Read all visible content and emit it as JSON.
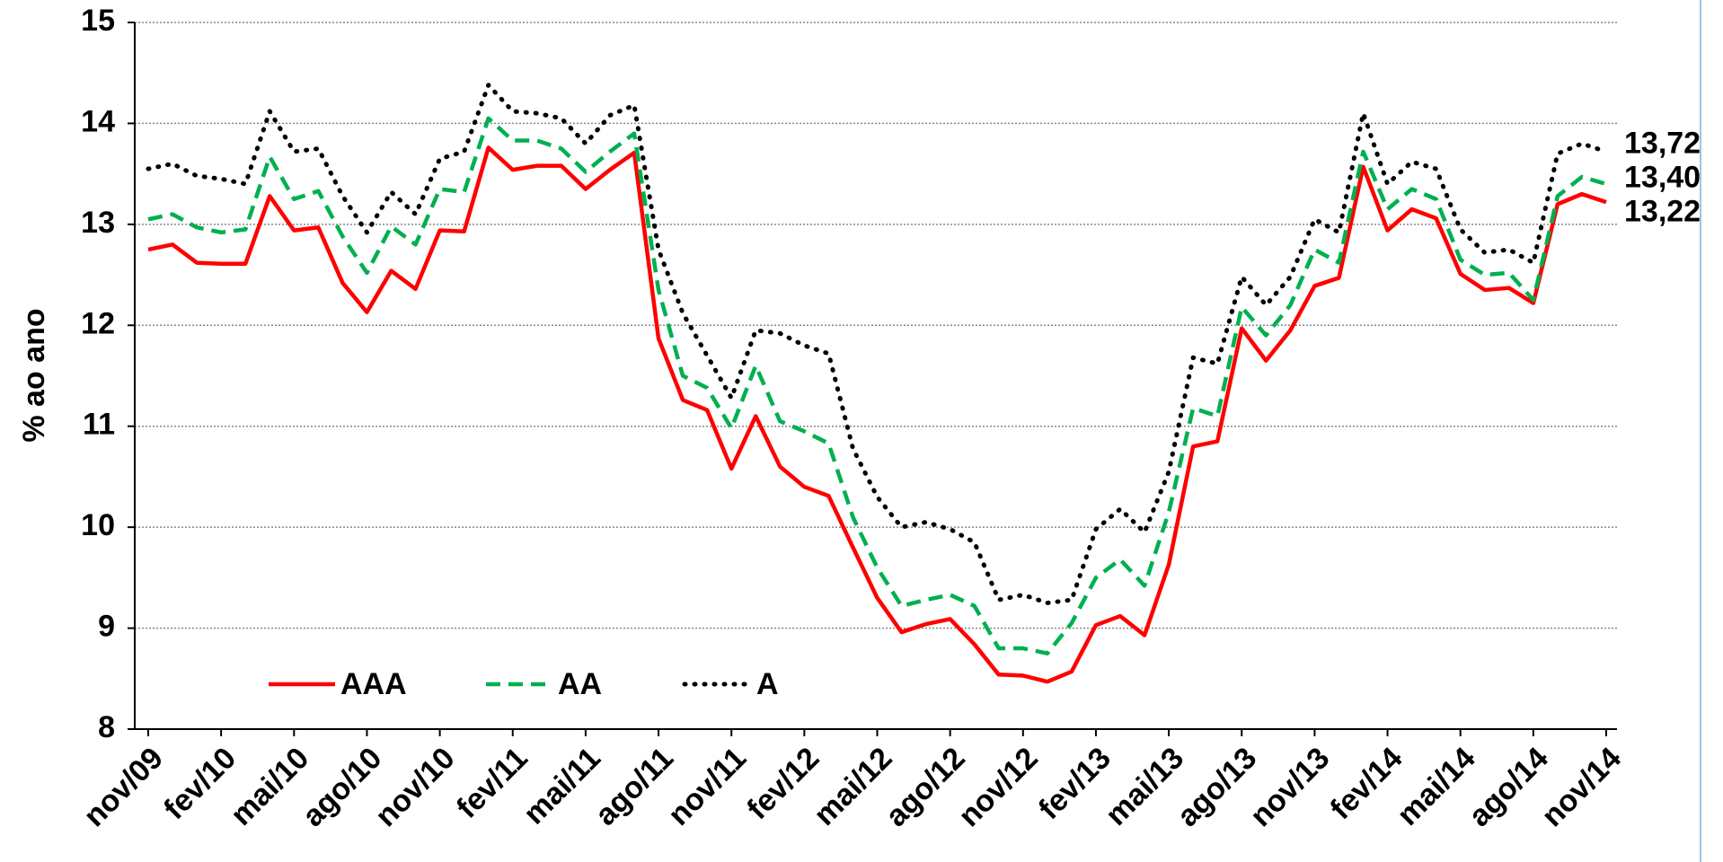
{
  "chart_data": {
    "type": "line",
    "y_label": "% ao ano",
    "categories": [
      "nov/09",
      null,
      null,
      "fev/10",
      null,
      null,
      "mai/10",
      null,
      null,
      "ago/10",
      null,
      null,
      "nov/10",
      null,
      null,
      "fev/11",
      null,
      null,
      "mai/11",
      null,
      null,
      "ago/11",
      null,
      null,
      "nov/11",
      null,
      null,
      "fev/12",
      null,
      null,
      "mai/12",
      null,
      null,
      "ago/12",
      null,
      null,
      "nov/12",
      null,
      null,
      "fev/13",
      null,
      null,
      "mai/13",
      null,
      null,
      "ago/13",
      null,
      null,
      "nov/13",
      null,
      null,
      "fev/14",
      null,
      null,
      "mai/14",
      null,
      null,
      "ago/14",
      null,
      null,
      "nov/14"
    ],
    "series": [
      {
        "name": "AAA",
        "color": "#ff0000",
        "dash": "solid",
        "values": [
          12.75,
          12.8,
          12.62,
          12.61,
          12.61,
          13.28,
          12.94,
          12.97,
          12.42,
          12.13,
          12.54,
          12.36,
          12.94,
          12.93,
          13.76,
          13.54,
          13.58,
          13.58,
          13.35,
          13.54,
          13.71,
          11.87,
          11.26,
          11.16,
          10.58,
          11.1,
          10.6,
          10.4,
          10.31,
          9.8,
          9.3,
          8.96,
          9.04,
          9.09,
          8.84,
          8.54,
          8.53,
          8.47,
          8.57,
          9.03,
          9.12,
          8.93,
          9.63,
          10.8,
          10.85,
          11.97,
          11.65,
          11.95,
          12.39,
          12.47,
          13.57,
          12.94,
          13.15,
          13.06,
          12.51,
          12.35,
          12.37,
          12.22,
          13.2,
          13.3,
          13.22
        ],
        "value_labels": [
          null,
          null,
          null,
          null,
          null,
          null,
          null,
          null,
          null,
          null,
          null,
          null,
          null,
          null,
          null,
          null,
          null,
          null,
          null,
          null,
          null,
          null,
          null,
          null,
          null,
          null,
          null,
          null,
          null,
          null,
          null,
          null,
          null,
          null,
          null,
          null,
          null,
          null,
          null,
          null,
          null,
          null,
          null,
          null,
          null,
          null,
          null,
          null,
          null,
          null,
          null,
          null,
          null,
          null,
          null,
          null,
          null,
          null,
          null,
          null,
          "13,22"
        ]
      },
      {
        "name": "AA",
        "color": "#00b050",
        "dash": "dashed",
        "values": [
          13.05,
          13.1,
          12.97,
          12.92,
          12.95,
          13.67,
          13.25,
          13.33,
          12.88,
          12.52,
          12.98,
          12.8,
          13.35,
          13.32,
          14.05,
          13.83,
          13.83,
          13.75,
          13.52,
          13.72,
          13.9,
          12.35,
          11.5,
          11.38,
          10.98,
          11.6,
          11.05,
          10.95,
          10.83,
          10.1,
          9.6,
          9.22,
          9.28,
          9.33,
          9.22,
          8.8,
          8.8,
          8.75,
          9.05,
          9.5,
          9.68,
          9.42,
          10.15,
          11.18,
          11.1,
          12.18,
          11.9,
          12.2,
          12.75,
          12.62,
          13.72,
          13.15,
          13.35,
          13.25,
          12.65,
          12.5,
          12.52,
          12.25,
          13.28,
          13.47,
          13.4
        ],
        "value_labels": [
          null,
          null,
          null,
          null,
          null,
          null,
          null,
          null,
          null,
          null,
          null,
          null,
          null,
          null,
          null,
          null,
          null,
          null,
          null,
          null,
          null,
          null,
          null,
          null,
          null,
          null,
          null,
          null,
          null,
          null,
          null,
          null,
          null,
          null,
          null,
          null,
          null,
          null,
          null,
          null,
          null,
          null,
          null,
          null,
          null,
          null,
          null,
          null,
          null,
          null,
          null,
          null,
          null,
          null,
          null,
          null,
          null,
          null,
          null,
          null,
          "13,40"
        ]
      },
      {
        "name": "A",
        "color": "#000000",
        "dash": "dotted",
        "values": [
          13.55,
          13.6,
          13.48,
          13.45,
          13.4,
          14.12,
          13.72,
          13.75,
          13.28,
          12.92,
          13.32,
          13.1,
          13.65,
          13.72,
          14.38,
          14.12,
          14.1,
          14.05,
          13.8,
          14.08,
          14.18,
          12.75,
          12.12,
          11.7,
          11.28,
          11.95,
          11.92,
          11.8,
          11.72,
          10.78,
          10.3,
          10.0,
          10.05,
          9.98,
          9.85,
          9.28,
          9.33,
          9.25,
          9.28,
          9.98,
          10.18,
          9.95,
          10.55,
          11.68,
          11.62,
          12.48,
          12.2,
          12.48,
          13.05,
          12.92,
          14.1,
          13.4,
          13.62,
          13.55,
          12.95,
          12.72,
          12.75,
          12.62,
          13.7,
          13.8,
          13.72
        ],
        "value_labels": [
          null,
          null,
          null,
          null,
          null,
          null,
          null,
          null,
          null,
          null,
          null,
          null,
          null,
          null,
          null,
          null,
          null,
          null,
          null,
          null,
          null,
          null,
          null,
          null,
          null,
          null,
          null,
          null,
          null,
          null,
          null,
          null,
          null,
          null,
          null,
          null,
          null,
          null,
          null,
          null,
          null,
          null,
          null,
          null,
          null,
          null,
          null,
          null,
          null,
          null,
          null,
          null,
          null,
          null,
          null,
          null,
          null,
          null,
          null,
          null,
          "13,72"
        ]
      }
    ],
    "ylim": [
      8,
      15
    ],
    "yticks": [
      8,
      9,
      10,
      11,
      12,
      13,
      14,
      15
    ],
    "grid": true,
    "legend": "lower left"
  }
}
